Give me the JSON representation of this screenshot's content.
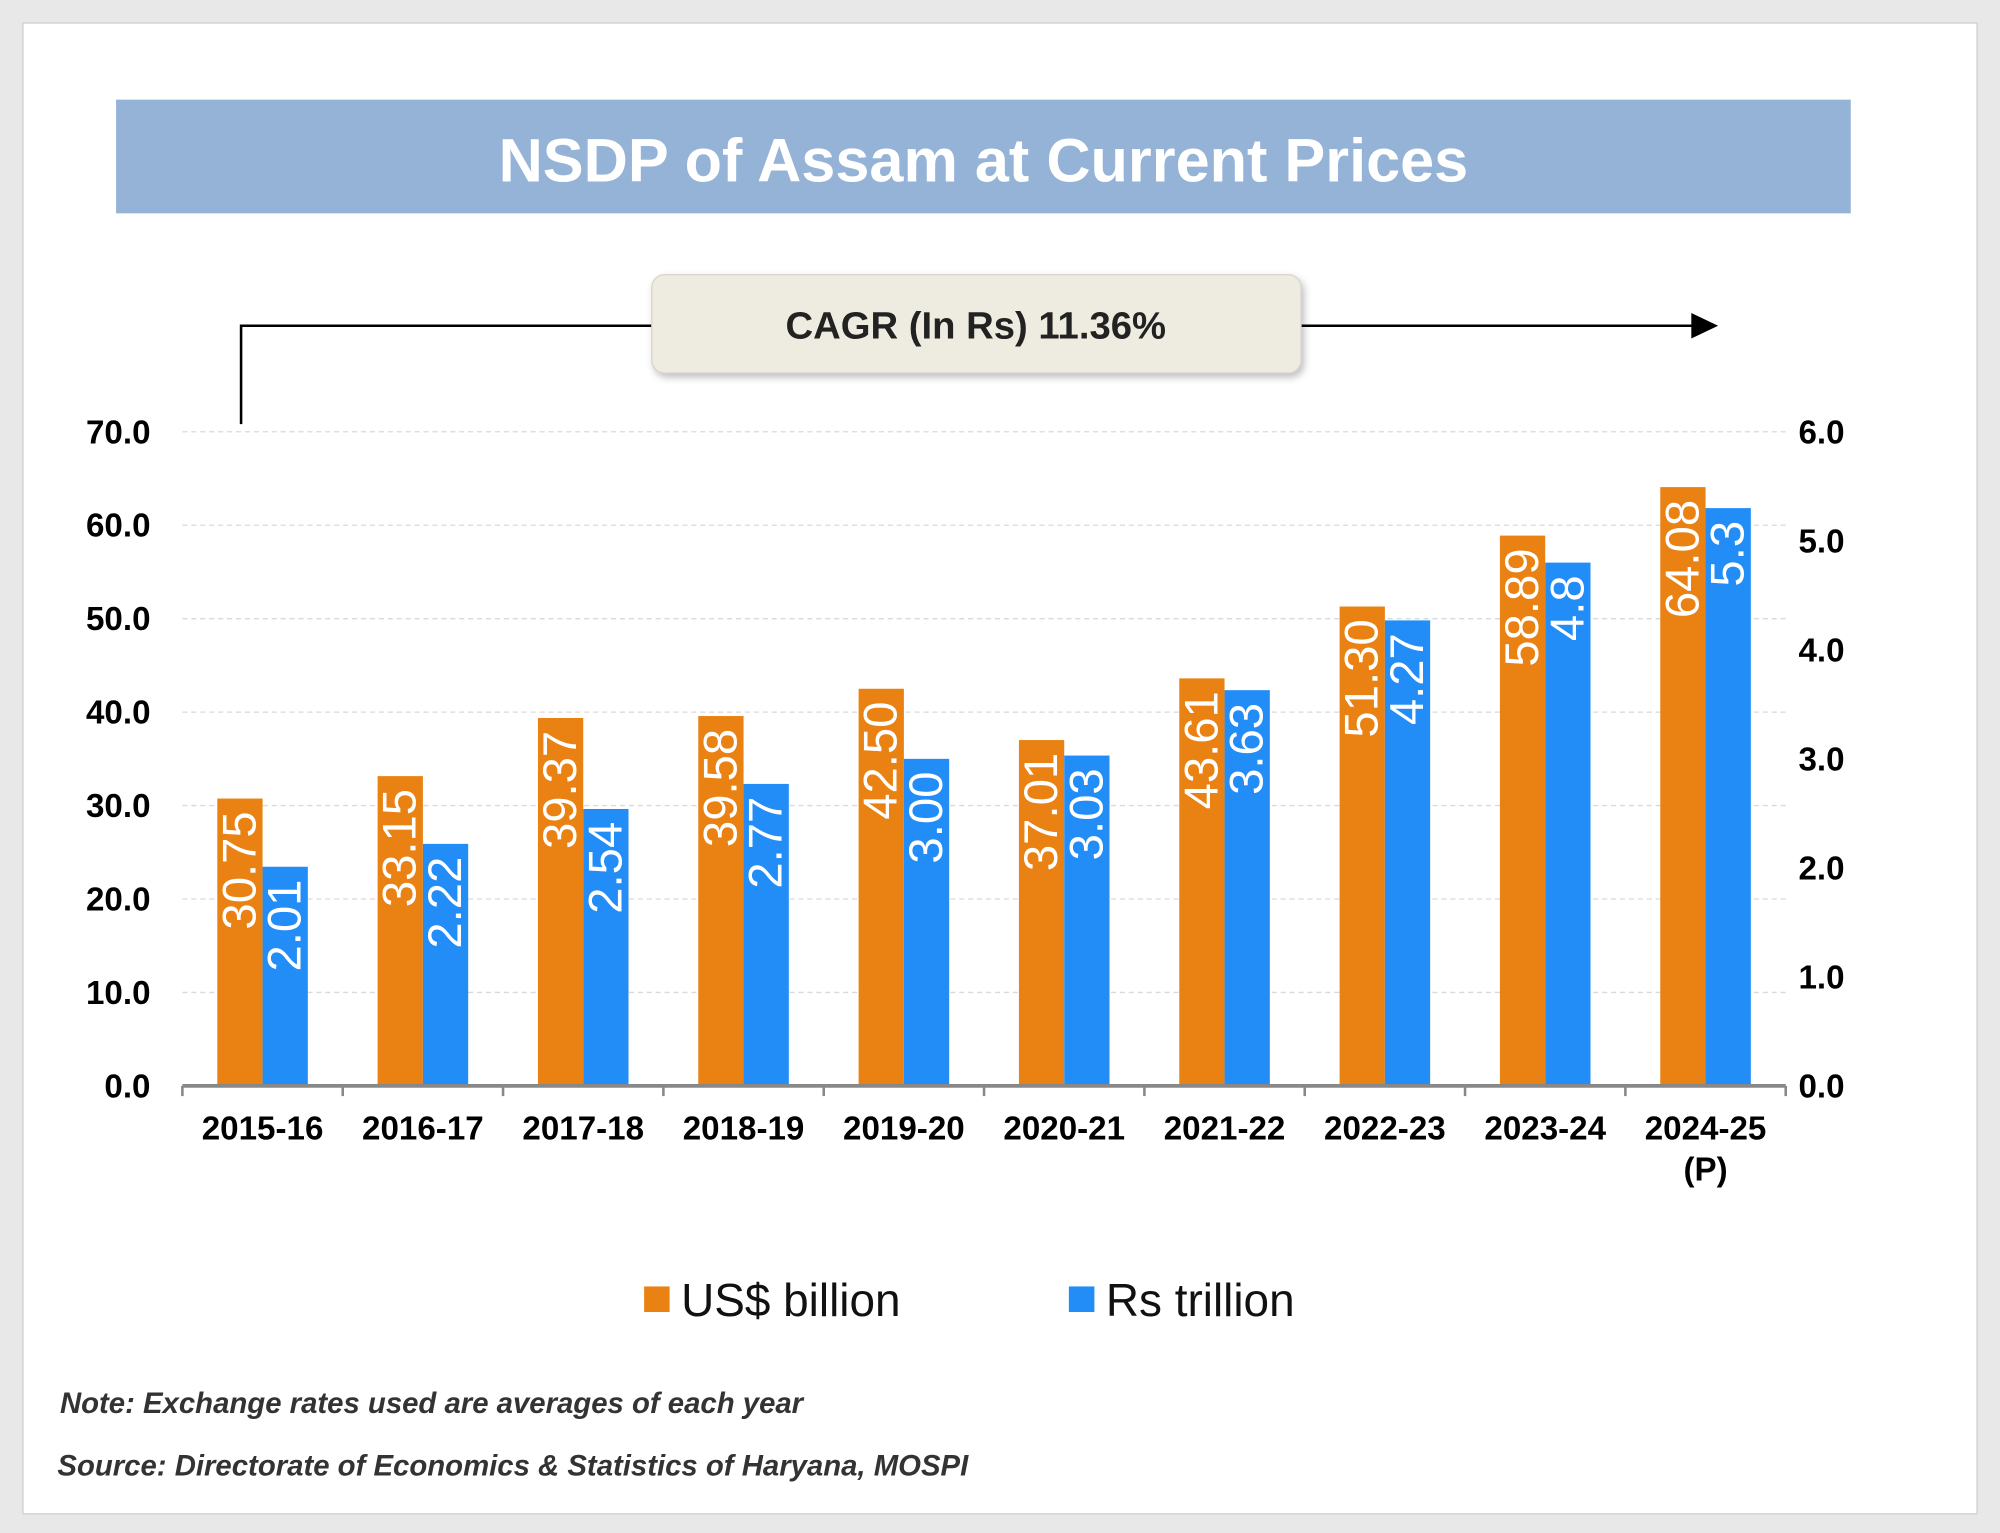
{
  "chart_data": {
    "type": "bar",
    "title": "NSDP of Assam at Current Prices",
    "annotation": "CAGR (In Rs) 11.36%",
    "categories": [
      "2015-16",
      "2016-17",
      "2017-18",
      "2018-19",
      "2019-20",
      "2020-21",
      "2021-22",
      "2022-23",
      "2023-24",
      "2024-25\n(P)"
    ],
    "series": [
      {
        "name": "US$ billion",
        "axis": "left",
        "color": "#E98212",
        "values": [
          30.75,
          33.15,
          39.37,
          39.58,
          42.5,
          37.01,
          43.61,
          51.3,
          58.89,
          64.08
        ],
        "labels": [
          "30.75",
          "33.15",
          "39.37",
          "39.58",
          "42.50",
          "37.01",
          "43.61",
          "51.30",
          "58.89",
          "64.08"
        ]
      },
      {
        "name": "Rs trillion",
        "axis": "right",
        "color": "#238DF7",
        "values": [
          2.01,
          2.22,
          2.54,
          2.77,
          3.0,
          3.03,
          3.63,
          4.27,
          4.8,
          5.3
        ],
        "labels": [
          "2.01",
          "2.22",
          "2.54",
          "2.77",
          "3.00",
          "3.03",
          "3.63",
          "4.27",
          "4.8",
          "5.3"
        ]
      }
    ],
    "y_left": {
      "lim": [
        0,
        70
      ],
      "ticks": [
        "0.0",
        "10.0",
        "20.0",
        "30.0",
        "40.0",
        "50.0",
        "60.0",
        "70.0"
      ]
    },
    "y_right": {
      "lim": [
        0,
        6
      ],
      "ticks": [
        "0.0",
        "1.0",
        "2.0",
        "3.0",
        "4.0",
        "5.0",
        "6.0"
      ]
    },
    "grid": true,
    "legend_position": "bottom"
  },
  "colors": {
    "title_banner": "#95B3D7",
    "cagr_box": "#EEEBE0"
  },
  "note": "Note: Exchange rates used are averages of each year",
  "source": "Source: Directorate of Economics & Statistics of Haryana, MOSPI"
}
